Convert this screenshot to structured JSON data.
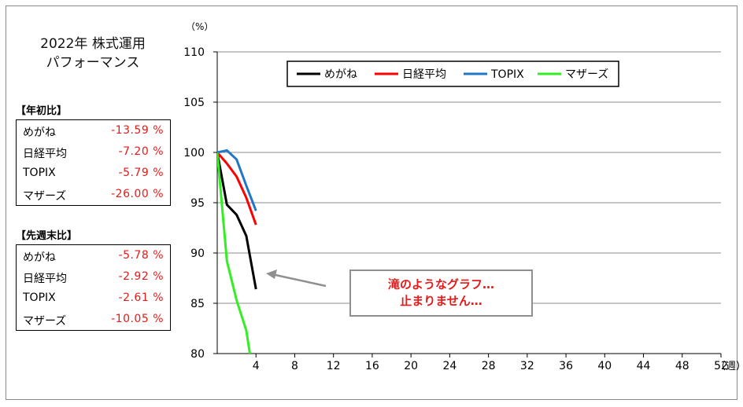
{
  "title": {
    "line1": "2022年 株式運用",
    "line2": "パフォーマンス"
  },
  "ytd": {
    "header": "【年初比】",
    "rows": [
      {
        "name": "めがね",
        "value": "-13.59 %"
      },
      {
        "name": "日経平均",
        "value": "-7.20 %"
      },
      {
        "name": "TOPIX",
        "value": "-5.79 %"
      },
      {
        "name": "マザーズ",
        "value": "-26.00 %"
      }
    ]
  },
  "weekly": {
    "header": "【先週末比】",
    "rows": [
      {
        "name": "めがね",
        "value": "-5.78 %"
      },
      {
        "name": "日経平均",
        "value": "-2.92 %"
      },
      {
        "name": "TOPIX",
        "value": "-2.61 %"
      },
      {
        "name": "マザーズ",
        "value": "-10.05 %"
      }
    ]
  },
  "callout": {
    "line1": "滝のようなグラフ…",
    "line2": "止まりません…"
  },
  "chart_data": {
    "type": "line",
    "y_unit_label": "（%）",
    "x_unit_label": "（週）",
    "xlim": [
      0,
      52
    ],
    "xticks": [
      4,
      8,
      12,
      16,
      20,
      24,
      28,
      32,
      36,
      40,
      44,
      48,
      52
    ],
    "ylim": [
      80,
      110
    ],
    "yticks": [
      80,
      85,
      90,
      95,
      100,
      105,
      110
    ],
    "grid": true,
    "legend_position": "top-center",
    "series": [
      {
        "name": "めがね",
        "color": "#000000",
        "x": [
          0,
          1,
          2,
          3,
          4
        ],
        "values": [
          100,
          94.8,
          93.8,
          91.7,
          86.4
        ]
      },
      {
        "name": "日経平均",
        "color": "#ff0000",
        "x": [
          0,
          1,
          2,
          3,
          4
        ],
        "values": [
          100,
          98.9,
          97.6,
          95.5,
          92.8
        ]
      },
      {
        "name": "TOPIX",
        "color": "#1f77c6",
        "x": [
          0,
          1,
          2,
          3,
          4
        ],
        "values": [
          100,
          100.2,
          99.3,
          96.7,
          94.2
        ]
      },
      {
        "name": "マザーズ",
        "color": "#33ee22",
        "x": [
          0,
          1,
          2,
          3,
          3.4
        ],
        "values": [
          100,
          89.2,
          85.3,
          82.3,
          79.8
        ]
      }
    ]
  }
}
